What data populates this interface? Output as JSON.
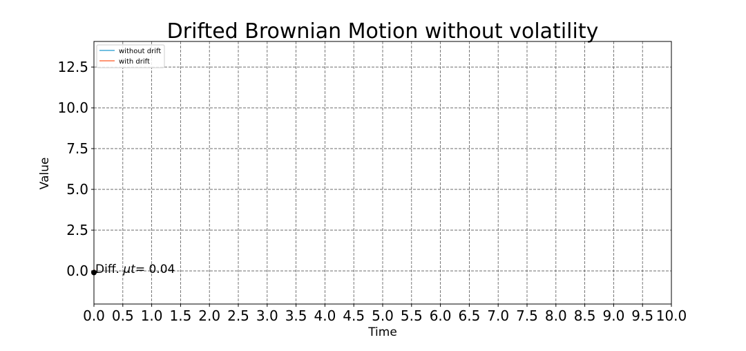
{
  "chart_data": {
    "type": "line",
    "title": "Drifted Brownian Motion without volatility",
    "xlabel": "Time",
    "ylabel": "Value",
    "xlim": [
      0,
      10
    ],
    "ylim": [
      -2.03,
      14.07
    ],
    "xticks": [
      0.0,
      0.5,
      1.0,
      1.5,
      2.0,
      2.5,
      3.0,
      3.5,
      4.0,
      4.5,
      5.0,
      5.5,
      6.0,
      6.5,
      7.0,
      7.5,
      8.0,
      8.5,
      9.0,
      9.5,
      10.0
    ],
    "yticks": [
      0.0,
      2.5,
      5.0,
      7.5,
      10.0,
      12.5
    ],
    "grid": true,
    "legend_position": "top-left",
    "series": [
      {
        "name": "without drift",
        "color": "#1f9bcf",
        "x": [
          0
        ],
        "y": [
          0
        ]
      },
      {
        "name": "with drift",
        "color": "#ff5722",
        "x": [
          0
        ],
        "y": [
          0.04
        ]
      }
    ],
    "marker": {
      "x": 0,
      "y": -0.1,
      "color": "#000000"
    },
    "annotation": {
      "prefix": "Diff. ",
      "math": "μt",
      "suffix": "=  0.04",
      "x": 0,
      "y": 0
    }
  }
}
